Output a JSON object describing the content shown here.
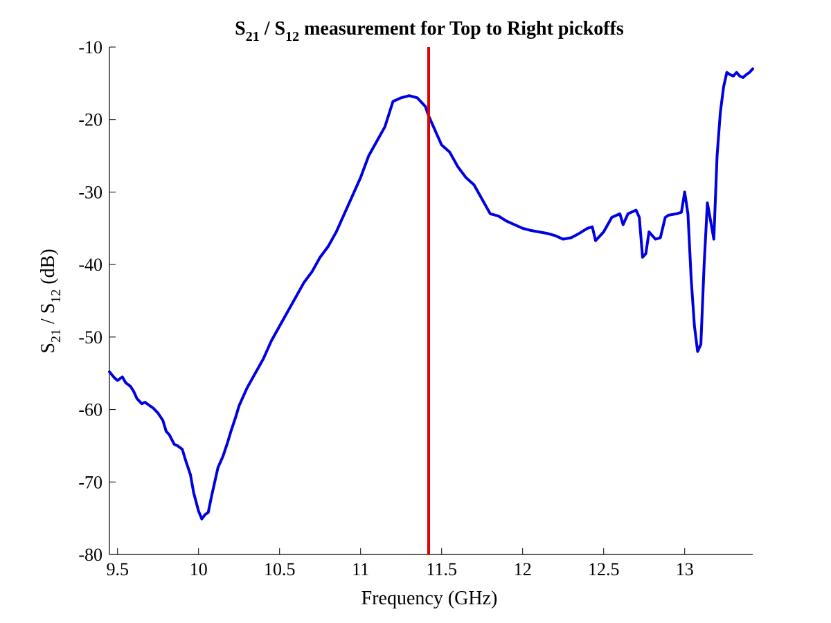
{
  "chart_data": {
    "type": "line",
    "title": {
      "pre": "S",
      "sub1": "21",
      "mid": " / S",
      "sub2": "12",
      "post": " measurement for Top to Right pickoffs"
    },
    "xlabel": "Frequency (GHz)",
    "ylabel": {
      "pre": "S",
      "sub1": "21",
      "mid": " / S",
      "sub2": "12",
      "post": " (dB)"
    },
    "xlim": [
      9.45,
      13.42
    ],
    "ylim": [
      -80,
      -10
    ],
    "x_ticks": [
      9.5,
      10,
      10.5,
      11,
      11.5,
      12,
      12.5,
      13
    ],
    "x_tick_labels": [
      "9.5",
      "10",
      "10.5",
      "11",
      "11.5",
      "12",
      "12.5",
      "13"
    ],
    "y_ticks": [
      -10,
      -20,
      -30,
      -40,
      -50,
      -60,
      -70,
      -80
    ],
    "y_tick_labels": [
      "-10",
      "-20",
      "-30",
      "-40",
      "-50",
      "-60",
      "-70",
      "-80"
    ],
    "grid": false,
    "marker_line": {
      "x": 11.42,
      "color": "#e00000"
    },
    "series": [
      {
        "color": "#0000e0",
        "x": [
          9.45,
          9.48,
          9.5,
          9.53,
          9.55,
          9.58,
          9.6,
          9.62,
          9.65,
          9.67,
          9.7,
          9.72,
          9.75,
          9.78,
          9.8,
          9.82,
          9.85,
          9.87,
          9.9,
          9.92,
          9.95,
          9.97,
          10.0,
          10.02,
          10.04,
          10.06,
          10.08,
          10.1,
          10.12,
          10.15,
          10.18,
          10.2,
          10.23,
          10.25,
          10.28,
          10.3,
          10.35,
          10.4,
          10.45,
          10.5,
          10.55,
          10.6,
          10.65,
          10.7,
          10.75,
          10.8,
          10.85,
          10.9,
          10.95,
          11.0,
          11.05,
          11.1,
          11.15,
          11.2,
          11.25,
          11.3,
          11.35,
          11.4,
          11.42,
          11.45,
          11.5,
          11.55,
          11.6,
          11.65,
          11.7,
          11.75,
          11.8,
          11.85,
          11.9,
          11.95,
          12.0,
          12.05,
          12.1,
          12.15,
          12.2,
          12.25,
          12.3,
          12.35,
          12.4,
          12.43,
          12.45,
          12.5,
          12.55,
          12.6,
          12.62,
          12.65,
          12.7,
          12.72,
          12.74,
          12.76,
          12.78,
          12.8,
          12.82,
          12.85,
          12.88,
          12.9,
          12.95,
          12.98,
          13.0,
          13.02,
          13.04,
          13.06,
          13.08,
          13.1,
          13.12,
          13.14,
          13.16,
          13.18,
          13.2,
          13.22,
          13.24,
          13.26,
          13.28,
          13.3,
          13.32,
          13.34,
          13.36,
          13.38,
          13.4,
          13.42
        ],
        "y": [
          -54.8,
          -55.6,
          -56.0,
          -55.5,
          -56.3,
          -56.8,
          -57.5,
          -58.5,
          -59.2,
          -59.0,
          -59.5,
          -59.8,
          -60.5,
          -61.5,
          -63.0,
          -63.5,
          -64.8,
          -65.0,
          -65.5,
          -67.0,
          -69.0,
          -71.5,
          -74.0,
          -75.1,
          -74.5,
          -74.2,
          -72.0,
          -70.0,
          -68.0,
          -66.5,
          -64.5,
          -63.0,
          -61.0,
          -59.5,
          -58.0,
          -57.0,
          -55.0,
          -53.0,
          -50.5,
          -48.5,
          -46.5,
          -44.5,
          -42.5,
          -41.0,
          -39.0,
          -37.5,
          -35.5,
          -33.0,
          -30.5,
          -28.0,
          -25.0,
          -23.0,
          -21.0,
          -17.5,
          -17.0,
          -16.7,
          -17.0,
          -18.2,
          -19.5,
          -21.0,
          -23.5,
          -24.5,
          -26.5,
          -28.0,
          -29.0,
          -31.0,
          -33.0,
          -33.3,
          -34.0,
          -34.5,
          -35.0,
          -35.3,
          -35.5,
          -35.7,
          -36.0,
          -36.5,
          -36.3,
          -35.7,
          -35.0,
          -34.8,
          -36.7,
          -35.5,
          -33.5,
          -33.0,
          -34.5,
          -33.0,
          -32.5,
          -33.5,
          -39.0,
          -38.5,
          -35.5,
          -36.0,
          -36.5,
          -36.3,
          -33.5,
          -33.2,
          -33.0,
          -32.8,
          -30.0,
          -33.0,
          -42.0,
          -48.5,
          -52.0,
          -51.0,
          -40.0,
          -31.5,
          -34.0,
          -36.5,
          -25.0,
          -19.0,
          -15.5,
          -13.5,
          -13.8,
          -14.0,
          -13.5,
          -14.0,
          -14.2,
          -13.8,
          -13.5,
          -13.0
        ]
      }
    ]
  }
}
